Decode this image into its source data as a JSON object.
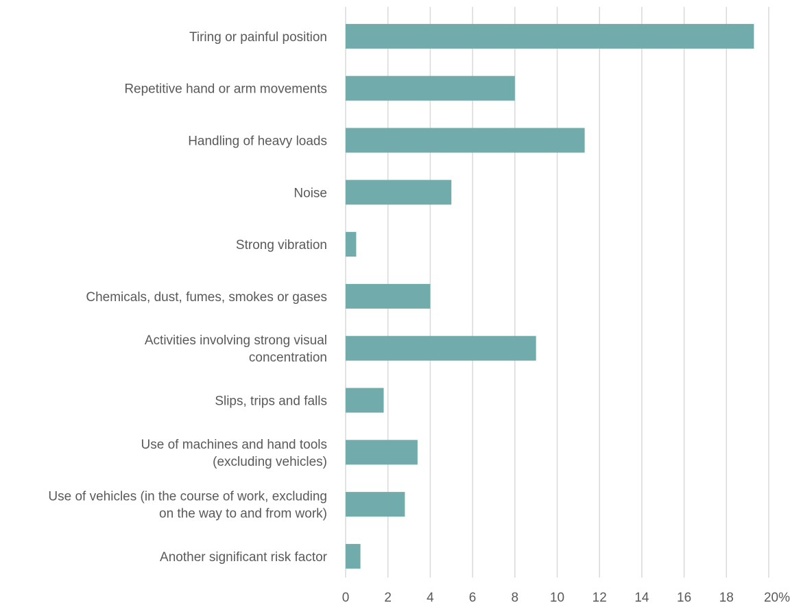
{
  "chart_data": {
    "type": "bar",
    "orientation": "horizontal",
    "title": "",
    "xlabel": "",
    "ylabel": "",
    "categories": [
      [
        "Tiring or painful position"
      ],
      [
        "Repetitive hand or arm movements"
      ],
      [
        "Handling of heavy loads"
      ],
      [
        "Noise"
      ],
      [
        "Strong vibration"
      ],
      [
        "Chemicals, dust, fumes, smokes or gases"
      ],
      [
        "Activities involving strong visual",
        "concentration"
      ],
      [
        "Slips, trips and falls"
      ],
      [
        "Use of machines and hand tools",
        "(excluding vehicles)"
      ],
      [
        "Use of vehicles (in the course of work, excluding",
        "on the way to and from work)"
      ],
      [
        "Another significant risk factor"
      ]
    ],
    "values": [
      19.3,
      8.0,
      11.3,
      5.0,
      0.5,
      4.0,
      9.0,
      1.8,
      3.4,
      2.8,
      0.7
    ],
    "xlim": [
      0,
      20
    ],
    "ticks": [
      "0",
      "2",
      "4",
      "6",
      "8",
      "10",
      "12",
      "14",
      "16",
      "18",
      "20%"
    ],
    "grid": true,
    "legend": "none",
    "bar_color": "#72abab",
    "grid_color": "#d9d9d9",
    "text_color": "#595959"
  }
}
